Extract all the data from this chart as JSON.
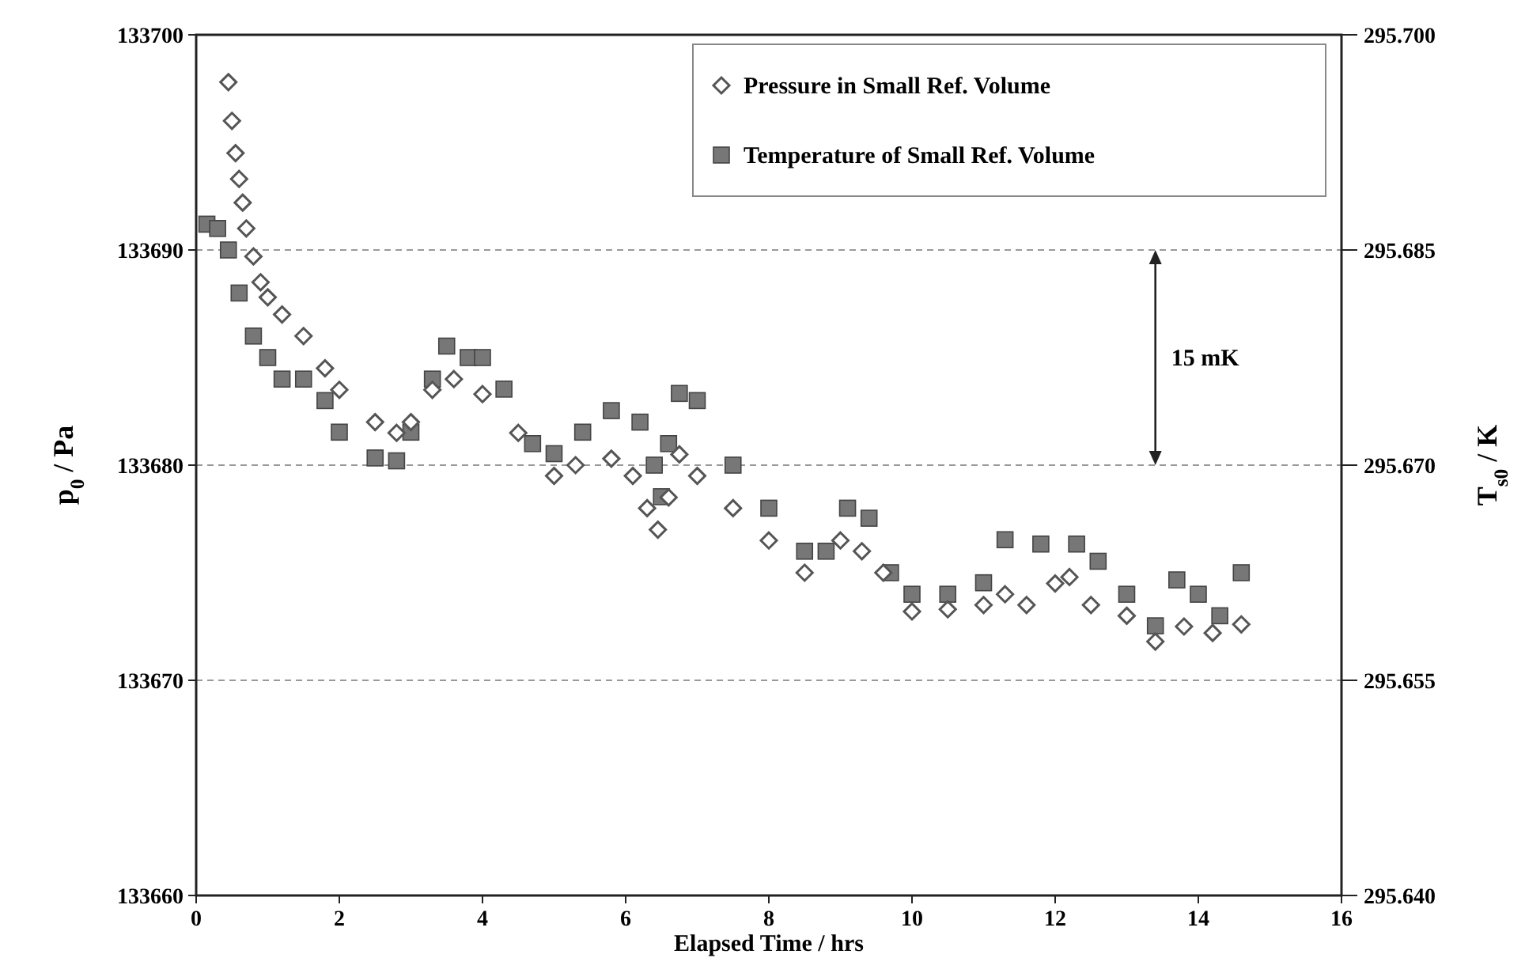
{
  "chart_data": {
    "type": "scatter",
    "xlabel": "Elapsed Time / hrs",
    "ylabel": "p$_{0}$ / Pa",
    "y2label": "T$_{s0}$ / K",
    "xlim": [
      0,
      16
    ],
    "xticks": [
      0,
      2,
      4,
      6,
      8,
      10,
      12,
      14,
      16
    ],
    "ylim": [
      133660,
      133700
    ],
    "yticks": [
      133660,
      133670,
      133680,
      133690,
      133700
    ],
    "y2lim": [
      295.64,
      295.7
    ],
    "y2ticks": [
      {
        "value": 295.64,
        "label": "295.640"
      },
      295.655,
      {
        "value": 295.67,
        "label": "295.670"
      },
      295.685,
      {
        "value": 295.7,
        "label": "295.700"
      }
    ],
    "grid": "y",
    "legend": "top right",
    "annotations": [
      "15 mK"
    ],
    "series": [
      {
        "name": "Pressure in Small Ref. Volume",
        "color": "#555555",
        "marker": "diamond",
        "x": [
          0.45,
          0.5,
          0.55,
          0.6,
          0.65,
          0.7,
          0.8,
          0.9,
          1.0,
          1.2,
          1.5,
          1.8,
          2.0,
          2.5,
          2.8,
          3.0,
          3.3,
          3.6,
          4.0,
          4.5,
          5.0,
          5.3,
          5.8,
          6.1,
          6.3,
          6.45,
          6.6,
          6.75,
          7.0,
          7.5,
          8.0,
          8.5,
          9.0,
          9.3,
          9.6,
          10.0,
          10.5,
          11.0,
          11.3,
          11.6,
          12.0,
          12.2,
          12.5,
          13.0,
          13.4,
          13.8,
          14.2,
          14.6
        ],
        "values": [
          133697.8,
          133696,
          133694.5,
          133693.3,
          133692.2,
          133691,
          133689.7,
          133688.5,
          133687.8,
          133687,
          133686,
          133684.5,
          133683.5,
          133682,
          133681.5,
          133682,
          133683.5,
          133684,
          133683.3,
          133681.5,
          133679.5,
          133680,
          133680.3,
          133679.5,
          133678,
          133677,
          133678.5,
          133680.5,
          133679.5,
          133678,
          133676.5,
          133675,
          133676.5,
          133676,
          133675,
          133673.2,
          133673.3,
          133673.5,
          133674,
          133673.5,
          133674.5,
          133674.8,
          133673.5,
          133673,
          133671.8,
          133672.5,
          133672.2,
          133672.6
        ]
      },
      {
        "name": "Temperature of Small Ref. Volume",
        "color": "#777777",
        "marker": "square",
        "axis": "y2",
        "x": [
          0.15,
          0.3,
          0.45,
          0.6,
          0.8,
          1.0,
          1.2,
          1.5,
          1.8,
          2.0,
          2.5,
          2.8,
          3.0,
          3.3,
          3.5,
          3.8,
          4.0,
          4.3,
          4.7,
          5.0,
          5.4,
          5.8,
          6.2,
          6.4,
          6.5,
          6.6,
          6.75,
          7.0,
          7.5,
          8.0,
          8.5,
          8.8,
          9.1,
          9.4,
          9.7,
          10.0,
          10.5,
          11.0,
          11.3,
          11.8,
          12.3,
          12.6,
          13.0,
          13.4,
          13.7,
          14.0,
          14.3,
          14.6
        ],
        "values": [
          295.6868,
          295.6865,
          295.685,
          295.682,
          295.679,
          295.6775,
          295.676,
          295.676,
          295.6745,
          295.6723,
          295.6705,
          295.6703,
          295.6723,
          295.676,
          295.6783,
          295.6775,
          295.6775,
          295.6753,
          295.6715,
          295.6708,
          295.6723,
          295.6738,
          295.673,
          295.67,
          295.6678,
          295.6715,
          295.675,
          295.6745,
          295.67,
          295.667,
          295.664,
          295.664,
          295.667,
          295.6663,
          295.6625,
          295.661,
          295.661,
          295.6618,
          295.6648,
          295.6645,
          295.6645,
          295.6633,
          295.661,
          295.6588,
          295.662,
          295.661,
          295.6595,
          295.6625
        ]
      }
    ]
  }
}
